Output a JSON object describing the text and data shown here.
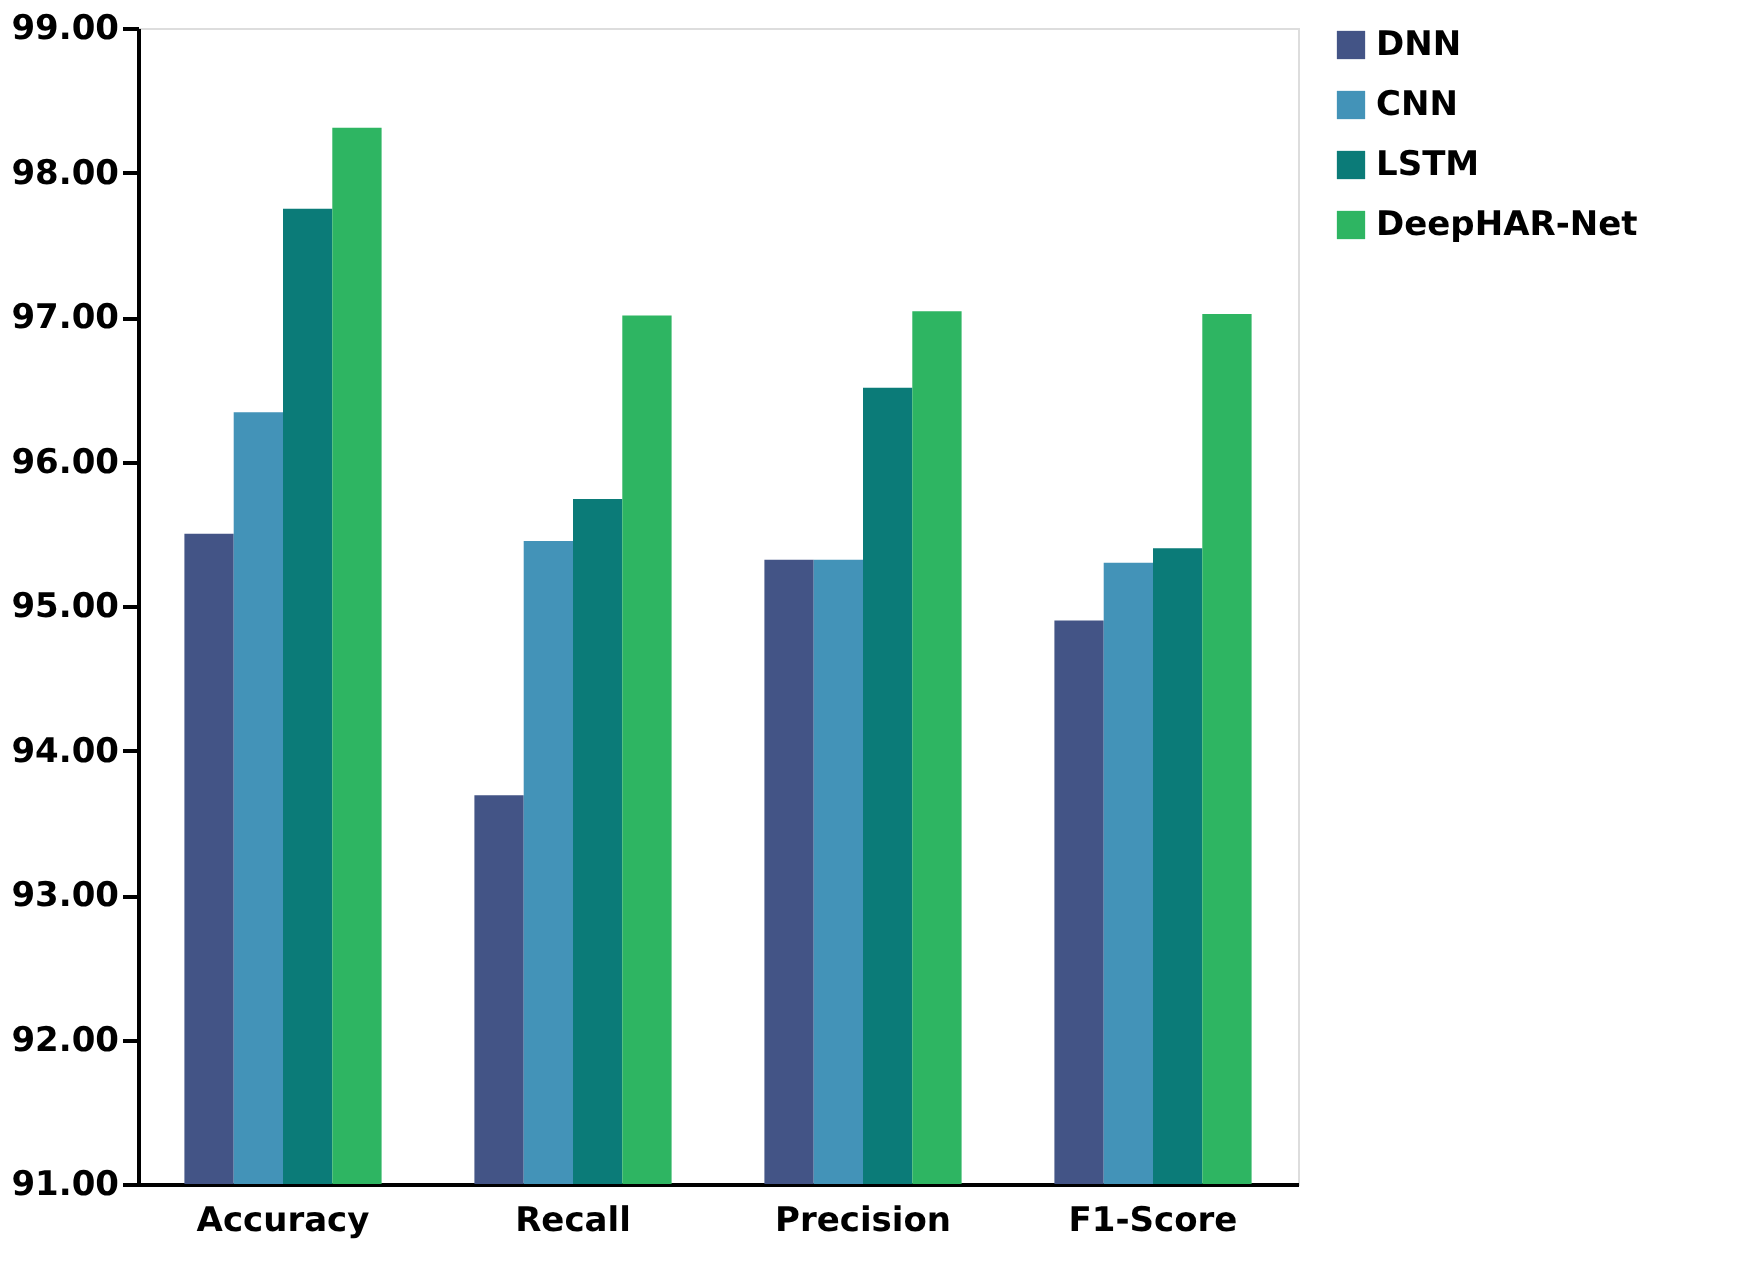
{
  "chart_data": {
    "type": "bar",
    "categories": [
      "Accuracy",
      "Recall",
      "Precision",
      "F1-Score"
    ],
    "series": [
      {
        "name": "DNN",
        "color": "#435486",
        "values": [
          95.5,
          93.69,
          95.32,
          94.9
        ]
      },
      {
        "name": "CNN",
        "color": "#4393b8",
        "values": [
          96.34,
          95.45,
          95.32,
          95.3
        ]
      },
      {
        "name": "LSTM",
        "color": "#0b7b78",
        "values": [
          97.75,
          95.74,
          96.51,
          95.4
        ]
      },
      {
        "name": "DeepHAR-Net",
        "color": "#2eb562",
        "values": [
          98.31,
          97.01,
          97.04,
          97.02
        ]
      }
    ],
    "ylim": [
      91,
      99
    ],
    "yticks": [
      {
        "value": 91,
        "label": "91.00"
      },
      {
        "value": 92,
        "label": "92.00"
      },
      {
        "value": 93,
        "label": "93.00"
      },
      {
        "value": 94,
        "label": "94.00"
      },
      {
        "value": 95,
        "label": "95.00"
      },
      {
        "value": 96,
        "label": "96.00"
      },
      {
        "value": 97,
        "label": "97.00"
      },
      {
        "value": 98,
        "label": "98.00"
      },
      {
        "value": 99,
        "label": "99.00"
      }
    ],
    "grid": false,
    "legend": "right"
  }
}
